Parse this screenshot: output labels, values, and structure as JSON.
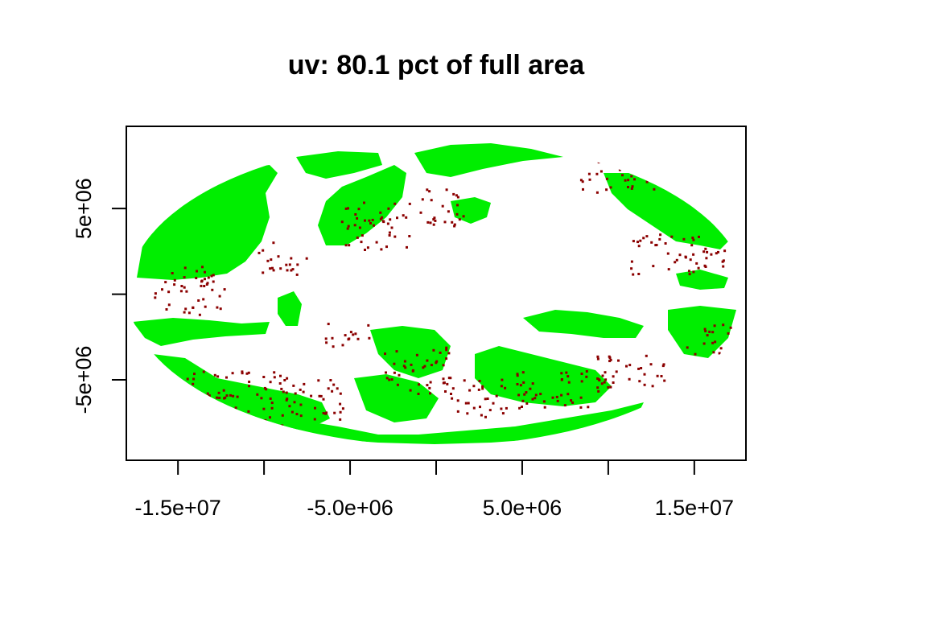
{
  "title": "uv: 80.1 pct of full area",
  "colors": {
    "land": "#00ee00",
    "speckle": "#8b0000",
    "background": "#ffffff",
    "axis": "#000000"
  },
  "chart_data": {
    "type": "map",
    "projection": "Mollweide (world, equal area)",
    "title": "uv: 80.1 pct of full area",
    "covered_pct": 80.1,
    "xlim": [
      -18000000,
      18000000
    ],
    "ylim": [
      -9700000,
      9800000
    ],
    "x_ticks": [
      {
        "value": -15000000,
        "label": "-1.5e+07"
      },
      {
        "value": -10000000,
        "label": ""
      },
      {
        "value": -5000000,
        "label": "-5.0e+06"
      },
      {
        "value": 0,
        "label": ""
      },
      {
        "value": 5000000,
        "label": "5.0e+06"
      },
      {
        "value": 10000000,
        "label": ""
      },
      {
        "value": 15000000,
        "label": "1.5e+07"
      }
    ],
    "y_ticks": [
      {
        "value": 5000000,
        "label": "5e+06"
      },
      {
        "value": 0,
        "label": ""
      },
      {
        "value": -5000000,
        "label": "-5e+06"
      }
    ],
    "legend": "none",
    "grid": false
  }
}
